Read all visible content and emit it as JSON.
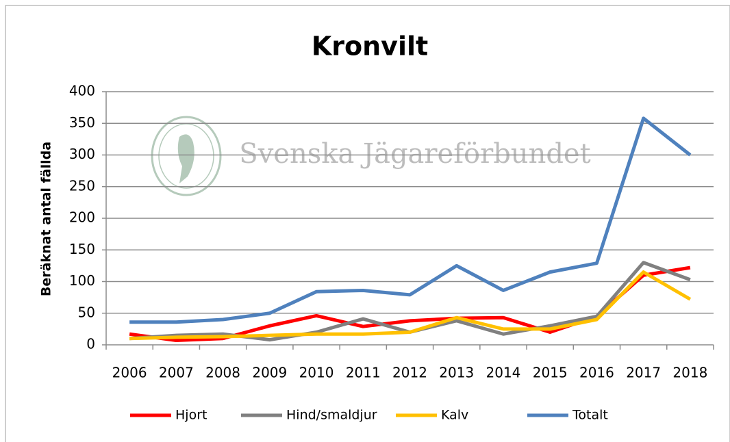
{
  "chart_data": {
    "type": "line",
    "title": "Kronvilt",
    "y_label": "Beräknat antal fällda",
    "watermark": "Svenska Jägareförbundet",
    "categories": [
      "2006",
      "2007",
      "2008",
      "2009",
      "2010",
      "2011",
      "2012",
      "2013",
      "2014",
      "2015",
      "2016",
      "2017",
      "2018"
    ],
    "series": [
      {
        "name": "Hjort",
        "color": "#ff0000",
        "values": [
          17,
          7,
          10,
          30,
          46,
          29,
          38,
          42,
          43,
          20,
          45,
          110,
          122
        ]
      },
      {
        "name": "Hind/smaldjur",
        "color": "#808080",
        "values": [
          10,
          15,
          17,
          8,
          20,
          41,
          20,
          38,
          17,
          30,
          45,
          130,
          103
        ]
      },
      {
        "name": "Kalv",
        "color": "#ffc000",
        "values": [
          10,
          12,
          13,
          15,
          17,
          17,
          20,
          43,
          25,
          25,
          40,
          115,
          72
        ]
      },
      {
        "name": "Totalt",
        "color": "#4f81bd",
        "values": [
          36,
          36,
          40,
          50,
          84,
          86,
          79,
          125,
          86,
          115,
          129,
          358,
          300
        ]
      }
    ],
    "ylim": [
      0,
      400
    ],
    "yticks": [
      0,
      50,
      100,
      150,
      200,
      250,
      300,
      350,
      400
    ],
    "grid": true,
    "legend": "bottom"
  }
}
